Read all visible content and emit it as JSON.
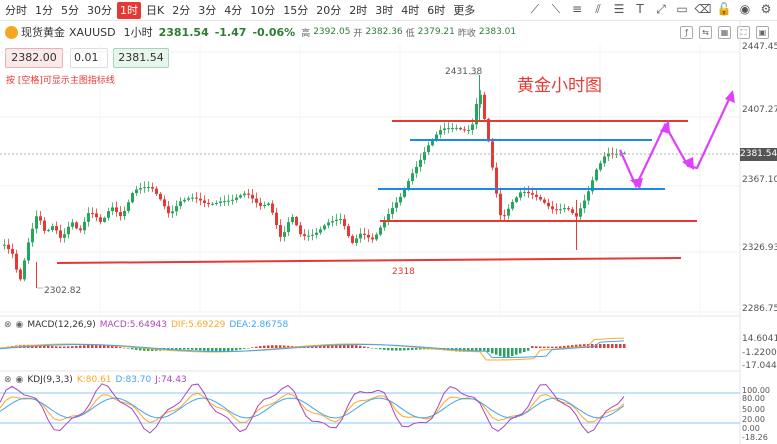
{
  "toolbar": {
    "timeframes": [
      "分时",
      "1分",
      "5分",
      "30分",
      "1时",
      "日K",
      "2分",
      "3分",
      "4分",
      "10分",
      "15分",
      "20分",
      "2时",
      "3时",
      "4时",
      "6时",
      "更多"
    ],
    "active": "1时"
  },
  "symbol": {
    "name": "现货黄金",
    "ticker": "XAUUSD",
    "timeframe": "1小时",
    "last": "2381.54",
    "change": "-1.47",
    "change_pct": "-0.06%",
    "high_label": "高",
    "high": "2392.05",
    "open_label": "开",
    "open": "2382.36",
    "low_label": "低",
    "low": "2379.21",
    "prev_label": "昨收",
    "prev": "2383.01"
  },
  "order": {
    "sell": "2382.00",
    "qty": "0.01",
    "buy": "2381.54"
  },
  "hint": "按 [空格]可显示主图指标线",
  "chart_data": {
    "type": "candlestick",
    "title": "黄金小时图",
    "y_axis_ticks": [
      "2447.45",
      "2407.27",
      "2367.10",
      "2326.93",
      "2286.75"
    ],
    "current_price": "2381.54",
    "annotations": [
      "2431.38",
      "2302.82",
      "2318"
    ],
    "colors": {
      "up": "#26a65b",
      "down": "#e53935",
      "resistance": "#e53935",
      "support": "#1e88e5",
      "arrows": "#e040fb"
    }
  },
  "macd": {
    "label": "MACD(12,26,9)",
    "macd": "MACD:5.64943",
    "dif": "DIF:5.69229",
    "dea": "DEA:2.86758",
    "ticks": [
      "14.60417",
      "-1.22001",
      "-17.04419"
    ]
  },
  "kdj": {
    "label": "KDJ(9,3,3)",
    "k": "K:80.61",
    "d": "D:83.70",
    "j": "J:74.43",
    "ticks": [
      "100.00",
      "80.00",
      "50.00",
      "20.00",
      "0.00",
      "-18.26"
    ]
  }
}
